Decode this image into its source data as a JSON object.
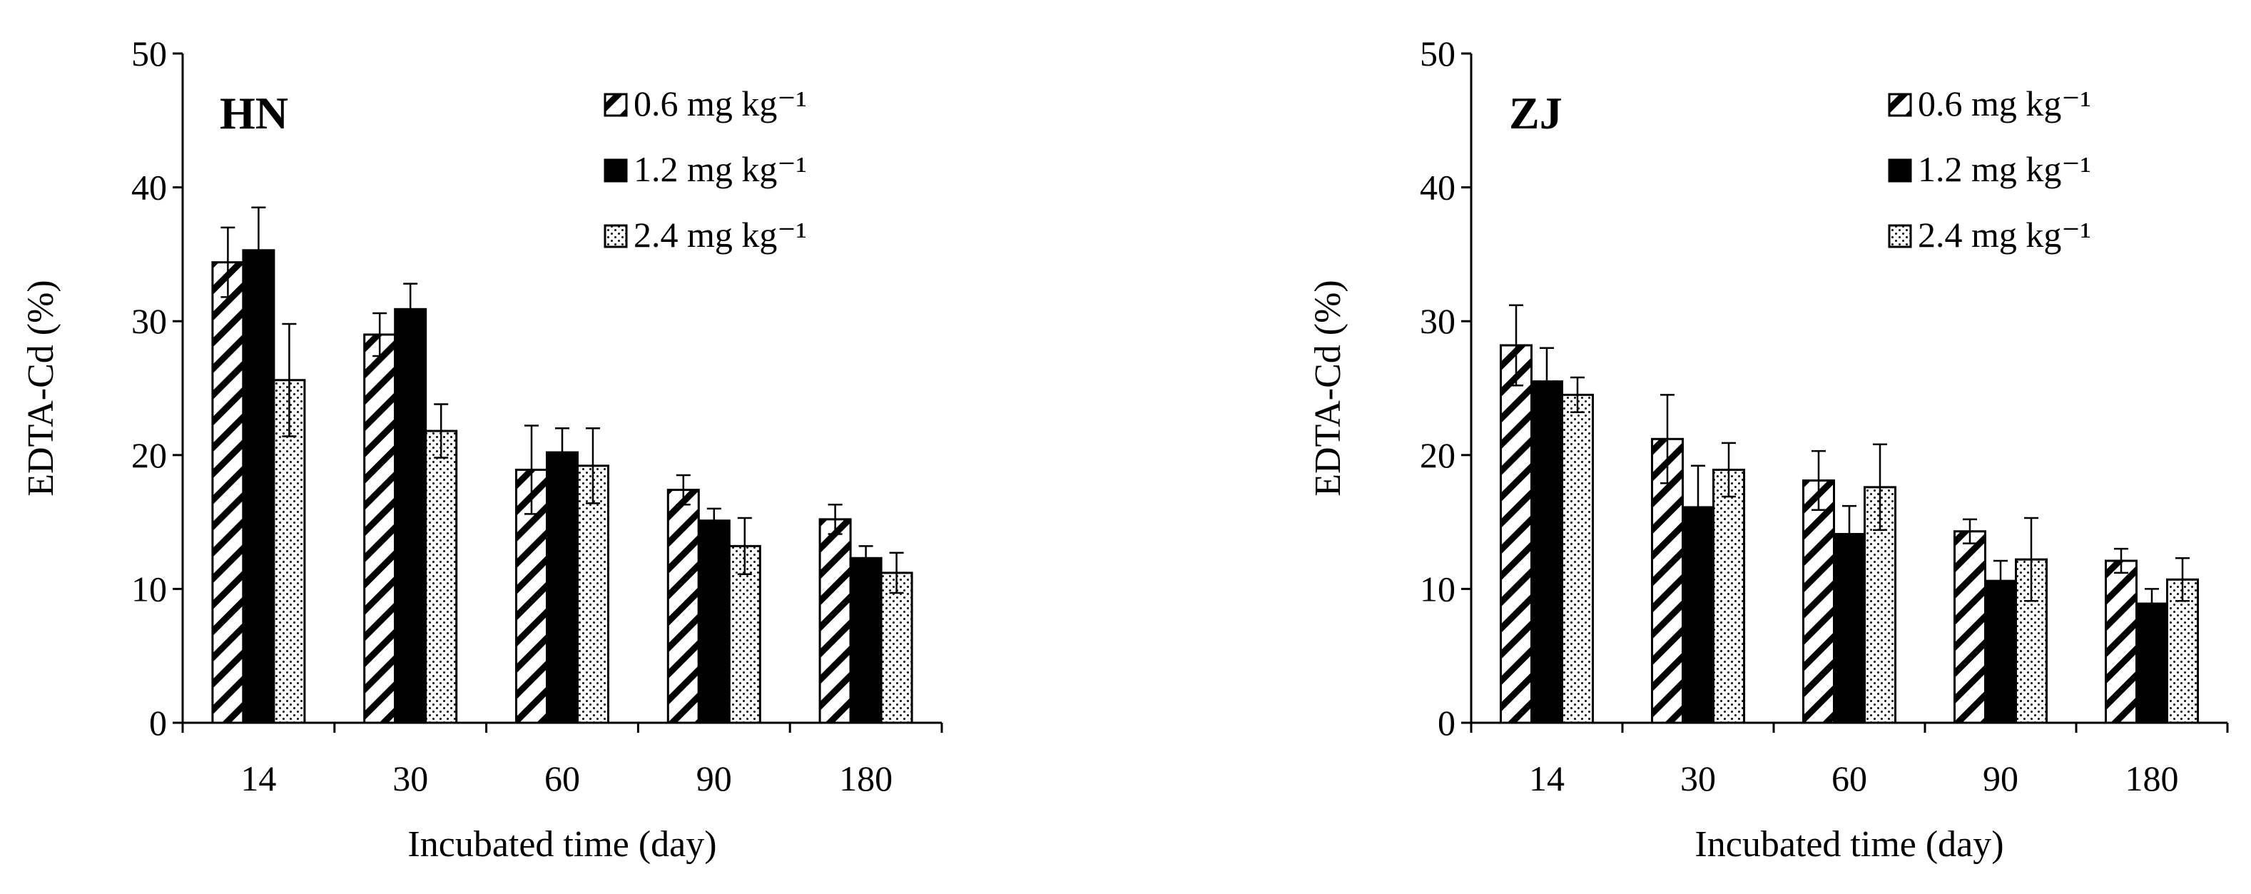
{
  "chart_data": [
    {
      "type": "bar",
      "title": "HN",
      "xlabel": "Incubated time (day)",
      "ylabel": "EDTA-Cd (%)",
      "ylim": [
        0,
        50
      ],
      "yticks": [
        0,
        10,
        20,
        30,
        40,
        50
      ],
      "categories": [
        "14",
        "30",
        "60",
        "90",
        "180"
      ],
      "legend_position": "top-right",
      "series": [
        {
          "name": "0.6 mg kg⁻¹",
          "pattern": "hatch",
          "values": [
            34.4,
            29.0,
            18.9,
            17.4,
            15.2
          ],
          "errors": [
            2.6,
            1.6,
            3.3,
            1.1,
            1.1
          ]
        },
        {
          "name": "1.2 mg kg⁻¹",
          "pattern": "solid",
          "values": [
            35.3,
            30.9,
            20.2,
            15.1,
            12.3
          ],
          "errors": [
            3.2,
            1.9,
            1.8,
            0.9,
            0.9
          ]
        },
        {
          "name": "2.4 mg kg⁻¹",
          "pattern": "dots",
          "values": [
            25.6,
            21.8,
            19.2,
            13.2,
            11.2
          ],
          "errors": [
            4.2,
            2.0,
            2.8,
            2.1,
            1.5
          ]
        }
      ]
    },
    {
      "type": "bar",
      "title": "ZJ",
      "xlabel": "Incubated time (day)",
      "ylabel": "EDTA-Cd (%)",
      "ylim": [
        0,
        50
      ],
      "yticks": [
        0,
        10,
        20,
        30,
        40,
        50
      ],
      "categories": [
        "14",
        "30",
        "60",
        "90",
        "180"
      ],
      "legend_position": "top-right",
      "series": [
        {
          "name": "0.6 mg kg⁻¹",
          "pattern": "hatch",
          "values": [
            28.2,
            21.2,
            18.1,
            14.3,
            12.1
          ],
          "errors": [
            3.0,
            3.3,
            2.2,
            0.9,
            0.9
          ]
        },
        {
          "name": "1.2 mg kg⁻¹",
          "pattern": "solid",
          "values": [
            25.5,
            16.1,
            14.1,
            10.6,
            8.9
          ],
          "errors": [
            2.5,
            3.1,
            2.1,
            1.5,
            1.1
          ]
        },
        {
          "name": "2.4 mg kg⁻¹",
          "pattern": "dots",
          "values": [
            24.5,
            18.9,
            17.6,
            12.2,
            10.7
          ],
          "errors": [
            1.3,
            2.0,
            3.2,
            3.1,
            1.6
          ]
        }
      ]
    }
  ]
}
